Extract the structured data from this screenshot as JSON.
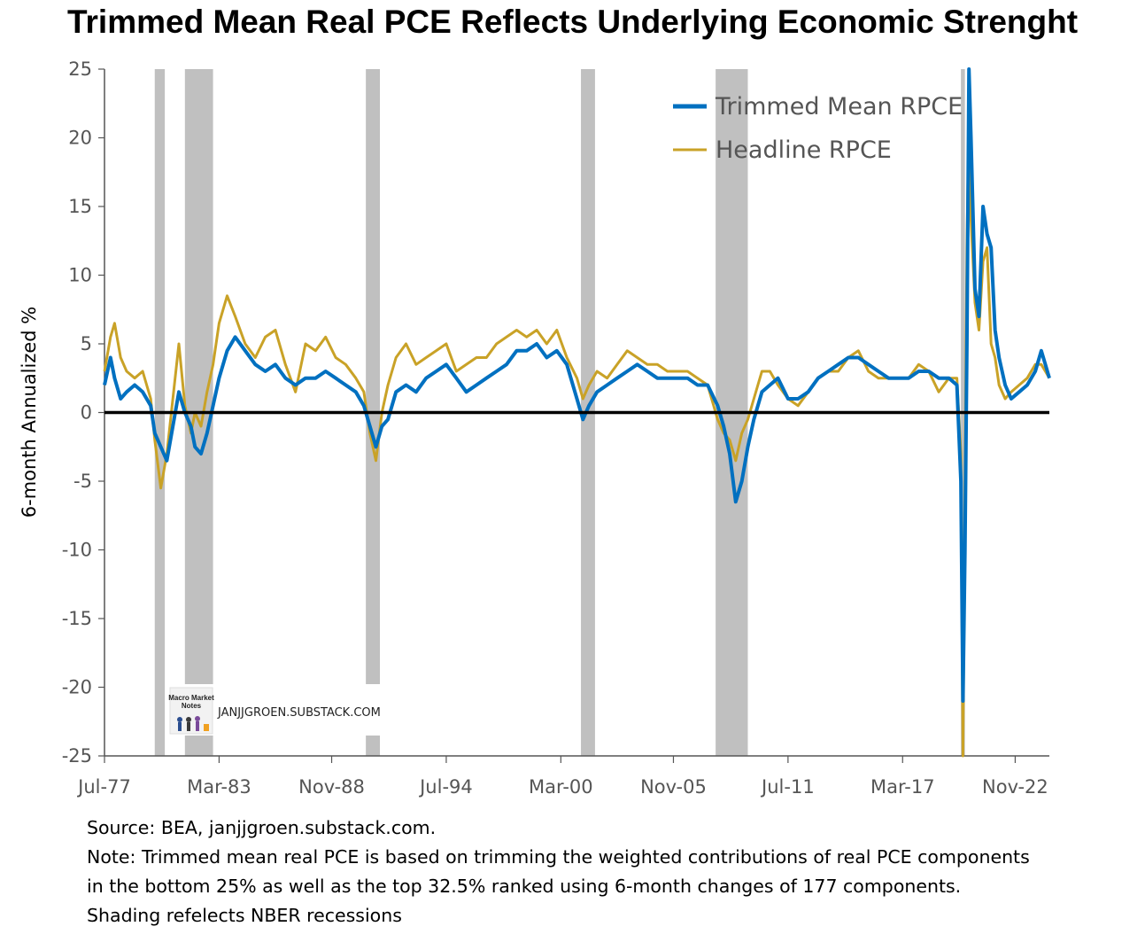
{
  "chart_data": {
    "type": "line",
    "title": "Trimmed Mean Real PCE Reflects Underlying Economic Strenght",
    "ylabel": "6-month Annualized %",
    "xlabel": "",
    "ylim": [
      -25,
      25
    ],
    "yticks": [
      25,
      20,
      15,
      10,
      5,
      0,
      -5,
      -10,
      -15,
      -20,
      -25
    ],
    "xlim": [
      1977.5,
      2024.5
    ],
    "xtick_labels": [
      "Jul-77",
      "Mar-83",
      "Nov-88",
      "Jul-94",
      "Mar-00",
      "Nov-05",
      "Jul-11",
      "Mar-17",
      "Nov-22"
    ],
    "xtick_values": [
      1977.5,
      1983.2,
      1988.8,
      1994.5,
      2000.2,
      2005.8,
      2011.5,
      2017.2,
      2022.8
    ],
    "legend_position": "top-right",
    "grid": false,
    "zero_line": true,
    "recessions": [
      [
        1980.0,
        1980.5
      ],
      [
        1981.5,
        1982.9
      ],
      [
        1990.5,
        1991.2
      ],
      [
        2001.2,
        2001.9
      ],
      [
        2007.9,
        2009.5
      ],
      [
        2020.1,
        2020.3
      ]
    ],
    "series": [
      {
        "name": "Trimmed Mean RPCE",
        "color": "#0070c0",
        "x": [
          1977.5,
          1977.8,
          1978.0,
          1978.3,
          1978.6,
          1979.0,
          1979.4,
          1979.8,
          1980.0,
          1980.3,
          1980.6,
          1980.9,
          1981.2,
          1981.5,
          1981.8,
          1982.0,
          1982.3,
          1982.6,
          1982.9,
          1983.2,
          1983.6,
          1984.0,
          1984.5,
          1985.0,
          1985.5,
          1986.0,
          1986.5,
          1987.0,
          1987.5,
          1988.0,
          1988.5,
          1989.0,
          1989.5,
          1990.0,
          1990.4,
          1990.7,
          1991.0,
          1991.3,
          1991.6,
          1992.0,
          1992.5,
          1993.0,
          1993.5,
          1994.0,
          1994.5,
          1995.0,
          1995.5,
          1996.0,
          1996.5,
          1997.0,
          1997.5,
          1998.0,
          1998.5,
          1999.0,
          1999.5,
          2000.0,
          2000.5,
          2001.0,
          2001.3,
          2001.6,
          2002.0,
          2002.5,
          2003.0,
          2003.5,
          2004.0,
          2004.5,
          2005.0,
          2005.5,
          2006.0,
          2006.5,
          2007.0,
          2007.5,
          2008.0,
          2008.3,
          2008.6,
          2008.9,
          2009.2,
          2009.5,
          2009.8,
          2010.2,
          2010.6,
          2011.0,
          2011.5,
          2012.0,
          2012.5,
          2013.0,
          2013.5,
          2014.0,
          2014.5,
          2015.0,
          2015.5,
          2016.0,
          2016.5,
          2017.0,
          2017.5,
          2018.0,
          2018.5,
          2019.0,
          2019.5,
          2019.9,
          2020.1,
          2020.2,
          2020.3,
          2020.4,
          2020.5,
          2020.6,
          2020.8,
          2021.0,
          2021.2,
          2021.4,
          2021.6,
          2021.8,
          2022.0,
          2022.3,
          2022.6,
          2023.0,
          2023.4,
          2023.8,
          2024.1,
          2024.3,
          2024.5
        ],
        "values": [
          2.0,
          4.0,
          2.5,
          1.0,
          1.5,
          2.0,
          1.5,
          0.5,
          -1.5,
          -2.5,
          -3.5,
          -1.0,
          1.5,
          0.0,
          -1.0,
          -2.5,
          -3.0,
          -1.5,
          0.5,
          2.5,
          4.5,
          5.5,
          4.5,
          3.5,
          3.0,
          3.5,
          2.5,
          2.0,
          2.5,
          2.5,
          3.0,
          2.5,
          2.0,
          1.5,
          0.5,
          -1.0,
          -2.5,
          -1.0,
          -0.5,
          1.5,
          2.0,
          1.5,
          2.5,
          3.0,
          3.5,
          2.5,
          1.5,
          2.0,
          2.5,
          3.0,
          3.5,
          4.5,
          4.5,
          5.0,
          4.0,
          4.5,
          3.5,
          1.0,
          -0.5,
          0.5,
          1.5,
          2.0,
          2.5,
          3.0,
          3.5,
          3.0,
          2.5,
          2.5,
          2.5,
          2.5,
          2.0,
          2.0,
          0.5,
          -1.0,
          -3.0,
          -6.5,
          -5.0,
          -2.5,
          -0.5,
          1.5,
          2.0,
          2.5,
          1.0,
          1.0,
          1.5,
          2.5,
          3.0,
          3.5,
          4.0,
          4.0,
          3.5,
          3.0,
          2.5,
          2.5,
          2.5,
          3.0,
          3.0,
          2.5,
          2.5,
          2.0,
          -5.0,
          -21.0,
          -10.0,
          5.0,
          25.0,
          20.0,
          9.0,
          7.0,
          15.0,
          13.0,
          12.0,
          6.0,
          4.0,
          2.0,
          1.0,
          1.5,
          2.0,
          3.0,
          4.5,
          3.5,
          2.5
        ]
      },
      {
        "name": "Headline RPCE",
        "color": "#c9a227",
        "x": [
          1977.5,
          1977.8,
          1978.0,
          1978.3,
          1978.6,
          1979.0,
          1979.4,
          1979.8,
          1980.0,
          1980.3,
          1980.6,
          1980.9,
          1981.2,
          1981.5,
          1981.8,
          1982.0,
          1982.3,
          1982.6,
          1982.9,
          1983.2,
          1983.6,
          1984.0,
          1984.5,
          1985.0,
          1985.5,
          1986.0,
          1986.5,
          1987.0,
          1987.5,
          1988.0,
          1988.5,
          1989.0,
          1989.5,
          1990.0,
          1990.4,
          1990.7,
          1991.0,
          1991.3,
          1991.6,
          1992.0,
          1992.5,
          1993.0,
          1993.5,
          1994.0,
          1994.5,
          1995.0,
          1995.5,
          1996.0,
          1996.5,
          1997.0,
          1997.5,
          1998.0,
          1998.5,
          1999.0,
          1999.5,
          2000.0,
          2000.5,
          2001.0,
          2001.3,
          2001.6,
          2002.0,
          2002.5,
          2003.0,
          2003.5,
          2004.0,
          2004.5,
          2005.0,
          2005.5,
          2006.0,
          2006.5,
          2007.0,
          2007.5,
          2008.0,
          2008.3,
          2008.6,
          2008.9,
          2009.2,
          2009.5,
          2009.8,
          2010.2,
          2010.6,
          2011.0,
          2011.5,
          2012.0,
          2012.5,
          2013.0,
          2013.5,
          2014.0,
          2014.5,
          2015.0,
          2015.5,
          2016.0,
          2016.5,
          2017.0,
          2017.5,
          2018.0,
          2018.5,
          2019.0,
          2019.5,
          2019.9,
          2020.1,
          2020.2,
          2020.3,
          2020.4,
          2020.5,
          2020.6,
          2020.8,
          2021.0,
          2021.2,
          2021.4,
          2021.6,
          2021.8,
          2022.0,
          2022.3,
          2022.6,
          2023.0,
          2023.4,
          2023.8,
          2024.1,
          2024.3,
          2024.5
        ],
        "values": [
          3.0,
          5.5,
          6.5,
          4.0,
          3.0,
          2.5,
          3.0,
          1.0,
          -2.0,
          -5.5,
          -3.0,
          1.0,
          5.0,
          0.5,
          -1.5,
          0.0,
          -1.0,
          1.5,
          3.5,
          6.5,
          8.5,
          7.0,
          5.0,
          4.0,
          5.5,
          6.0,
          3.5,
          1.5,
          5.0,
          4.5,
          5.5,
          4.0,
          3.5,
          2.5,
          1.5,
          -1.5,
          -3.5,
          0.0,
          2.0,
          4.0,
          5.0,
          3.5,
          4.0,
          4.5,
          5.0,
          3.0,
          3.5,
          4.0,
          4.0,
          5.0,
          5.5,
          6.0,
          5.5,
          6.0,
          5.0,
          6.0,
          4.0,
          2.5,
          1.0,
          2.0,
          3.0,
          2.5,
          3.5,
          4.5,
          4.0,
          3.5,
          3.5,
          3.0,
          3.0,
          3.0,
          2.5,
          2.0,
          -0.5,
          -1.5,
          -2.0,
          -3.5,
          -1.5,
          -0.5,
          1.0,
          3.0,
          3.0,
          2.0,
          1.0,
          0.5,
          1.5,
          2.5,
          3.0,
          3.0,
          4.0,
          4.5,
          3.0,
          2.5,
          2.5,
          2.5,
          2.5,
          3.5,
          3.0,
          1.5,
          2.5,
          2.5,
          -3.0,
          -25.0,
          -5.0,
          12.0,
          22.0,
          14.0,
          8.0,
          6.0,
          11.0,
          12.0,
          5.0,
          4.0,
          2.0,
          1.0,
          1.5,
          2.0,
          2.5,
          3.5,
          3.5,
          3.0,
          2.5
        ]
      }
    ]
  },
  "watermark": {
    "text": "JANJJGROEN.SUBSTACK.COM",
    "logo_lines": [
      "Macro Market",
      "Notes"
    ]
  },
  "notes": [
    "Source: BEA, janjjgroen.substack.com.",
    "Note: Trimmed mean real PCE is based on trimming the weighted contributions of real PCE components",
    "in the bottom 25% as well as the top 32.5% ranked using 6-month changes of 177 components.",
    "Shading refelects NBER recessions"
  ]
}
